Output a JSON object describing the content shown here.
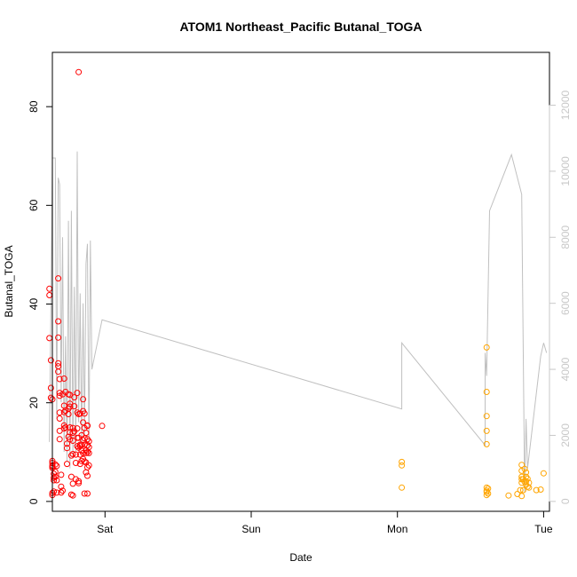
{
  "chart_data": {
    "type": "scatter",
    "title": "ATOM1 Northeast_Pacific Butanal_TOGA",
    "xlabel": "Date",
    "ylabel": "Butanal_TOGA",
    "x_ticks": [
      "Sat",
      "Sun",
      "Mon",
      "Tue"
    ],
    "xlim": [
      -0.36,
      3.04
    ],
    "ylim": [
      -2,
      91
    ],
    "y_ticks": [
      0,
      20,
      40,
      60,
      80
    ],
    "y2lim": [
      -300,
      13600
    ],
    "y2_ticks": [
      0,
      2000,
      4000,
      6000,
      8000,
      10000,
      12000
    ],
    "grid": false,
    "legend": "none",
    "colors": {
      "series_a": "#ff0000",
      "series_b": "#ffa500",
      "altitude_line": "#c0c0c0",
      "right_axis": "#c8c8c8"
    },
    "series": [
      {
        "color": "#ff0000",
        "points": [
          [
            -0.38,
            43.1
          ],
          [
            -0.38,
            41.8
          ],
          [
            -0.38,
            33.1
          ],
          [
            -0.37,
            28.6
          ],
          [
            -0.37,
            23
          ],
          [
            -0.37,
            21
          ],
          [
            -0.36,
            20.7
          ],
          [
            -0.36,
            8.2
          ],
          [
            -0.36,
            7.8
          ],
          [
            -0.36,
            7.3
          ],
          [
            -0.36,
            7.1
          ],
          [
            -0.36,
            6.8
          ],
          [
            -0.35,
            5.6
          ],
          [
            -0.35,
            4.8
          ],
          [
            -0.35,
            4.3
          ],
          [
            -0.35,
            2
          ],
          [
            -0.36,
            1.7
          ],
          [
            -0.36,
            1.3
          ],
          [
            -0.34,
            7.5
          ],
          [
            -0.34,
            6
          ],
          [
            -0.34,
            5
          ],
          [
            -0.33,
            7.2
          ],
          [
            -0.33,
            4.3
          ],
          [
            -0.33,
            1.8
          ],
          [
            -0.32,
            45.2
          ],
          [
            -0.32,
            36.5
          ],
          [
            -0.32,
            33.2
          ],
          [
            -0.32,
            28
          ],
          [
            -0.32,
            27.4
          ],
          [
            -0.32,
            26.3
          ],
          [
            -0.31,
            24.8
          ],
          [
            -0.31,
            22
          ],
          [
            -0.31,
            21.4
          ],
          [
            -0.31,
            18
          ],
          [
            -0.31,
            16.8
          ],
          [
            -0.31,
            14.3
          ],
          [
            -0.31,
            12.6
          ],
          [
            -0.3,
            5.4
          ],
          [
            -0.3,
            3
          ],
          [
            -0.3,
            1.8
          ],
          [
            -0.29,
            2.2
          ],
          [
            -0.29,
            21.7
          ],
          [
            -0.28,
            19.4
          ],
          [
            -0.28,
            18.1
          ],
          [
            -0.28,
            15.4
          ],
          [
            -0.28,
            14.8
          ],
          [
            -0.28,
            24.9
          ],
          [
            -0.27,
            22.2
          ],
          [
            -0.27,
            18.4
          ],
          [
            -0.27,
            15
          ],
          [
            -0.26,
            11.7
          ],
          [
            -0.26,
            10.8
          ],
          [
            -0.26,
            7.6
          ],
          [
            -0.25,
            21.7
          ],
          [
            -0.25,
            18.8
          ],
          [
            -0.25,
            17.7
          ],
          [
            -0.25,
            13.1
          ],
          [
            -0.24,
            21.6
          ],
          [
            -0.24,
            19.8
          ],
          [
            -0.24,
            19.2
          ],
          [
            -0.24,
            15
          ],
          [
            -0.24,
            14
          ],
          [
            -0.24,
            12.6
          ],
          [
            -0.23,
            9.3
          ],
          [
            -0.23,
            5
          ],
          [
            -0.23,
            1.4
          ],
          [
            -0.22,
            14.9
          ],
          [
            -0.22,
            13.9
          ],
          [
            -0.22,
            12.3
          ],
          [
            -0.22,
            9.6
          ],
          [
            -0.22,
            3.6
          ],
          [
            -0.22,
            1.2
          ],
          [
            -0.21,
            21.1
          ],
          [
            -0.21,
            19.3
          ],
          [
            -0.21,
            14.2
          ],
          [
            -0.2,
            7.8
          ],
          [
            -0.2,
            4.5
          ],
          [
            -0.2,
            9.5
          ],
          [
            -0.19,
            22
          ],
          [
            -0.19,
            18
          ],
          [
            -0.19,
            14.8
          ],
          [
            -0.19,
            12.9
          ],
          [
            -0.19,
            11.2
          ],
          [
            -0.18,
            10.9
          ],
          [
            -0.18,
            4.1
          ],
          [
            -0.18,
            3.7
          ],
          [
            -0.18,
            17.7
          ],
          [
            -0.18,
            12.9
          ],
          [
            -0.17,
            17.8
          ],
          [
            -0.17,
            11.5
          ],
          [
            -0.17,
            11.2
          ],
          [
            -0.17,
            9.5
          ],
          [
            -0.17,
            7.6
          ],
          [
            -0.16,
            13.4
          ],
          [
            -0.16,
            11.5
          ],
          [
            -0.16,
            10.3
          ],
          [
            -0.16,
            8.2
          ],
          [
            -0.15,
            20.7
          ],
          [
            -0.15,
            18.3
          ],
          [
            -0.15,
            16
          ],
          [
            -0.15,
            12.4
          ],
          [
            -0.15,
            9.8
          ],
          [
            -0.15,
            8.6
          ],
          [
            -0.14,
            17.8
          ],
          [
            -0.14,
            14.9
          ],
          [
            -0.14,
            12.8
          ],
          [
            -0.14,
            11.5
          ],
          [
            -0.14,
            8.1
          ],
          [
            -0.14,
            1.6
          ],
          [
            -0.13,
            10.3
          ],
          [
            -0.13,
            9.8
          ],
          [
            -0.13,
            7.9
          ],
          [
            -0.13,
            5.9
          ],
          [
            -0.13,
            13.9
          ],
          [
            -0.12,
            15.4
          ],
          [
            -0.12,
            12.6
          ],
          [
            -0.12,
            11.4
          ],
          [
            -0.12,
            10
          ],
          [
            -0.12,
            6.9
          ],
          [
            -0.12,
            5.2
          ],
          [
            -0.12,
            1.6
          ],
          [
            -0.12,
            15.3
          ],
          [
            -0.11,
            12.2
          ],
          [
            -0.11,
            11
          ],
          [
            -0.11,
            9.8
          ],
          [
            -0.11,
            7.3
          ],
          [
            -0.02,
            15.3
          ],
          [
            -0.18,
            87
          ]
        ]
      },
      {
        "color": "#ffa500",
        "points": [
          [
            2.03,
            8.0
          ],
          [
            2.03,
            7.3
          ],
          [
            2.03,
            2.8
          ],
          [
            2.61,
            31.2
          ],
          [
            2.61,
            22.2
          ],
          [
            2.61,
            17.3
          ],
          [
            2.61,
            14.3
          ],
          [
            2.61,
            11.6
          ],
          [
            2.61,
            2.8
          ],
          [
            2.61,
            2.2
          ],
          [
            2.61,
            1.9
          ],
          [
            2.61,
            1.3
          ],
          [
            2.62,
            2.6
          ],
          [
            2.62,
            1.6
          ],
          [
            2.76,
            1.2
          ],
          [
            2.82,
            1.5
          ],
          [
            2.84,
            2.3
          ],
          [
            2.85,
            7.4
          ],
          [
            2.85,
            6.2
          ],
          [
            2.85,
            5
          ],
          [
            2.85,
            4.5
          ],
          [
            2.85,
            3.8
          ],
          [
            2.85,
            1.1
          ],
          [
            2.86,
            4.5
          ],
          [
            2.86,
            2.3
          ],
          [
            2.87,
            6.6
          ],
          [
            2.87,
            4
          ],
          [
            2.88,
            5.9
          ],
          [
            2.88,
            5
          ],
          [
            2.88,
            4.1
          ],
          [
            2.88,
            3.4
          ],
          [
            2.89,
            4.6
          ],
          [
            2.89,
            3
          ],
          [
            2.9,
            3.8
          ],
          [
            2.9,
            2.8
          ],
          [
            2.95,
            2.3
          ],
          [
            2.98,
            2.4
          ],
          [
            3.0,
            5.7
          ]
        ]
      }
    ],
    "altitude_line": [
      [
        -0.38,
        1800
      ],
      [
        -0.37,
        6000
      ],
      [
        -0.36,
        10400
      ],
      [
        -0.34,
        10400
      ],
      [
        -0.33,
        2500
      ],
      [
        -0.32,
        9800
      ],
      [
        -0.31,
        9600
      ],
      [
        -0.3,
        3000
      ],
      [
        -0.29,
        8000
      ],
      [
        -0.28,
        1500
      ],
      [
        -0.27,
        5000
      ],
      [
        -0.26,
        1200
      ],
      [
        -0.25,
        8500
      ],
      [
        -0.24,
        1000
      ],
      [
        -0.23,
        8800
      ],
      [
        -0.22,
        1300
      ],
      [
        -0.21,
        6500
      ],
      [
        -0.2,
        1500
      ],
      [
        -0.19,
        10600
      ],
      [
        -0.18,
        2400
      ],
      [
        -0.17,
        6300
      ],
      [
        -0.16,
        1700
      ],
      [
        -0.15,
        6000
      ],
      [
        -0.14,
        2000
      ],
      [
        -0.13,
        7200
      ],
      [
        -0.12,
        7800
      ],
      [
        -0.11,
        1400
      ],
      [
        -0.1,
        7900
      ],
      [
        -0.09,
        4000
      ],
      [
        -0.02,
        5500
      ],
      [
        2.03,
        2800
      ],
      [
        2.03,
        4800
      ],
      [
        2.6,
        1700
      ],
      [
        2.6,
        4500
      ],
      [
        2.61,
        3800
      ],
      [
        2.63,
        8800
      ],
      [
        2.78,
        10500
      ],
      [
        2.85,
        9300
      ],
      [
        2.87,
        300
      ],
      [
        2.88,
        2500
      ],
      [
        2.89,
        1000
      ],
      [
        2.98,
        4400
      ],
      [
        3.0,
        4800
      ],
      [
        3.02,
        4500
      ]
    ]
  }
}
